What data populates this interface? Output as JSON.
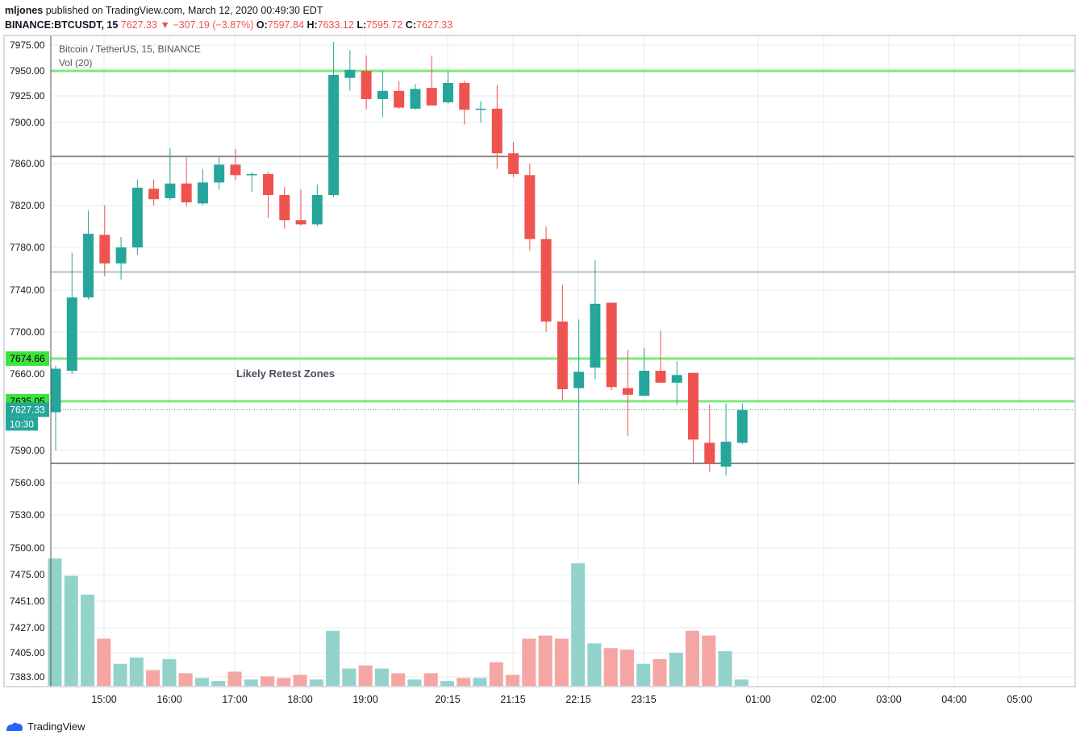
{
  "header": {
    "username": "mljones",
    "published_text": " published on TradingView.com, March 12, 2020 00:49:30 EDT",
    "symbol_line": "BINANCE:BTCUSDT, 15",
    "last": "7627.33",
    "arrow": "▼",
    "change": "−307.19 (−3.87%)",
    "o_label": "O:",
    "o_value": "7597.84",
    "h_label": "H:",
    "h_value": "7633.12",
    "l_label": "L:",
    "l_value": "7595.72",
    "c_label": "C:",
    "c_value": "7627.33"
  },
  "footer": {
    "brand": "TradingView"
  },
  "colors": {
    "up": "#26a69a",
    "down": "#ef5350",
    "vol_up": "#93d2cb",
    "vol_down": "#f5a5a3",
    "green_line": "#7fe77f",
    "gray_line": "#888888",
    "light_gray_line": "#b8bcc8",
    "label_green": "#3ee23e",
    "label_last": "#26a69a",
    "grid": "#e6ebf0"
  },
  "chart_data": {
    "type": "candlestick",
    "legend_title": "Bitcoin / TetherUS, 15, BINANCE",
    "legend_vol": "Vol (20)",
    "annotation": "Likely Retest Zones",
    "price_ticks": [
      "7975.00",
      "7950.00",
      "7925.00",
      "7900.00",
      "7860.00",
      "7820.00",
      "7780.00",
      "7740.00",
      "7700.00",
      "7660.00",
      "7590.00",
      "7560.00",
      "7530.00",
      "7500.00",
      "7475.00",
      "7451.00",
      "7427.00",
      "7405.00",
      "7383.00"
    ],
    "time_ticks": [
      "15:00",
      "16:00",
      "17:00",
      "18:00",
      "19:00",
      "20:15",
      "21:15",
      "22:15",
      "23:15",
      "01:00",
      "02:00",
      "03:00",
      "04:00",
      "05:00"
    ],
    "horizontal_lines": [
      {
        "price": 7950,
        "style": "green"
      },
      {
        "price": 7867,
        "style": "gray"
      },
      {
        "price": 7757,
        "style": "lightgray"
      },
      {
        "price": 7674.66,
        "style": "green",
        "label": "7674.66"
      },
      {
        "price": 7635.05,
        "style": "green",
        "label": "7635.05"
      },
      {
        "price": 7578,
        "style": "gray"
      }
    ],
    "last_price_label": "7627.33",
    "countdown_label": "10:30",
    "candles": [
      {
        "o": 7625,
        "h": 7668,
        "l": 7590,
        "c": 7665,
        "v": 81
      },
      {
        "o": 7663,
        "h": 7775,
        "l": 7660,
        "c": 7733,
        "v": 70
      },
      {
        "o": 7733,
        "h": 7815,
        "l": 7731,
        "c": 7793,
        "v": 58
      },
      {
        "o": 7792,
        "h": 7820,
        "l": 7753,
        "c": 7765,
        "v": 30
      },
      {
        "o": 7765,
        "h": 7790,
        "l": 7750,
        "c": 7780,
        "v": 14
      },
      {
        "o": 7780,
        "h": 7845,
        "l": 7773,
        "c": 7837,
        "v": 18
      },
      {
        "o": 7836,
        "h": 7845,
        "l": 7820,
        "c": 7826,
        "v": 10
      },
      {
        "o": 7827,
        "h": 7875,
        "l": 7825,
        "c": 7841,
        "v": 17
      },
      {
        "o": 7841,
        "h": 7867,
        "l": 7819,
        "c": 7823,
        "v": 8
      },
      {
        "o": 7822,
        "h": 7855,
        "l": 7820,
        "c": 7842,
        "v": 5
      },
      {
        "o": 7842,
        "h": 7867,
        "l": 7835,
        "c": 7859,
        "v": 3
      },
      {
        "o": 7859,
        "h": 7874,
        "l": 7844,
        "c": 7849,
        "v": 9
      },
      {
        "o": 7849,
        "h": 7852,
        "l": 7833,
        "c": 7850,
        "v": 4
      },
      {
        "o": 7850,
        "h": 7852,
        "l": 7808,
        "c": 7830,
        "v": 6
      },
      {
        "o": 7830,
        "h": 7838,
        "l": 7798,
        "c": 7806,
        "v": 5
      },
      {
        "o": 7806,
        "h": 7835,
        "l": 7801,
        "c": 7802,
        "v": 7
      },
      {
        "o": 7802,
        "h": 7840,
        "l": 7800,
        "c": 7830,
        "v": 4
      },
      {
        "o": 7830,
        "h": 7978,
        "l": 7828,
        "c": 7946,
        "v": 35
      },
      {
        "o": 7943,
        "h": 7970,
        "l": 7930,
        "c": 7951,
        "v": 11
      },
      {
        "o": 7950,
        "h": 7965,
        "l": 7912,
        "c": 7922,
        "v": 13
      },
      {
        "o": 7922,
        "h": 7950,
        "l": 7905,
        "c": 7930,
        "v": 11
      },
      {
        "o": 7930,
        "h": 7940,
        "l": 7913,
        "c": 7914,
        "v": 8
      },
      {
        "o": 7913,
        "h": 7937,
        "l": 7912,
        "c": 7932,
        "v": 4
      },
      {
        "o": 7933,
        "h": 7965,
        "l": 7920,
        "c": 7916,
        "v": 8
      },
      {
        "o": 7919,
        "h": 7950,
        "l": 7917,
        "c": 7938,
        "v": 3
      },
      {
        "o": 7938,
        "h": 7940,
        "l": 7898,
        "c": 7912,
        "v": 5
      },
      {
        "o": 7912,
        "h": 7920,
        "l": 7900,
        "c": 7913,
        "v": 5
      },
      {
        "o": 7913,
        "h": 7936,
        "l": 7855,
        "c": 7870,
        "v": 15
      },
      {
        "o": 7870,
        "h": 7881,
        "l": 7847,
        "c": 7850,
        "v": 7
      },
      {
        "o": 7849,
        "h": 7860,
        "l": 7777,
        "c": 7788,
        "v": 30
      },
      {
        "o": 7788,
        "h": 7800,
        "l": 7700,
        "c": 7710,
        "v": 32
      },
      {
        "o": 7710,
        "h": 7745,
        "l": 7636,
        "c": 7646,
        "v": 30
      },
      {
        "o": 7647,
        "h": 7712,
        "l": 7559,
        "c": 7662,
        "v": 78
      },
      {
        "o": 7666,
        "h": 7768,
        "l": 7655,
        "c": 7727,
        "v": 27
      },
      {
        "o": 7728,
        "h": 7728,
        "l": 7645,
        "c": 7648,
        "v": 24
      },
      {
        "o": 7647,
        "h": 7683,
        "l": 7603,
        "c": 7641,
        "v": 23
      },
      {
        "o": 7640,
        "h": 7685,
        "l": 7640,
        "c": 7663,
        "v": 14
      },
      {
        "o": 7663,
        "h": 7701,
        "l": 7653,
        "c": 7652,
        "v": 17
      },
      {
        "o": 7652,
        "h": 7672,
        "l": 7632,
        "c": 7659,
        "v": 21
      },
      {
        "o": 7661,
        "h": 7661,
        "l": 7577,
        "c": 7600,
        "v": 35
      },
      {
        "o": 7597,
        "h": 7632,
        "l": 7570,
        "c": 7578,
        "v": 32
      },
      {
        "o": 7575,
        "h": 7633,
        "l": 7567,
        "c": 7598,
        "v": 22
      },
      {
        "o": 7597,
        "h": 7633,
        "l": 7596,
        "c": 7627,
        "v": 4
      }
    ]
  }
}
